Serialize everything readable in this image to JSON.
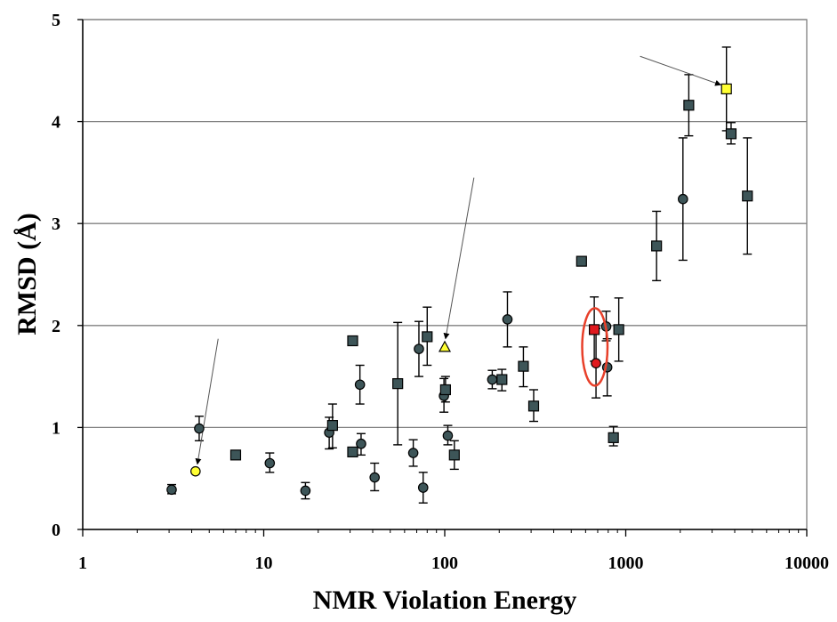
{
  "chart_data": {
    "type": "scatter",
    "title": "",
    "xlabel": "NMR Violation Energy",
    "ylabel": "RMSD (Å)",
    "x_scale": "log",
    "xlim": [
      1,
      10000
    ],
    "ylim": [
      0,
      5
    ],
    "x_ticks": [
      1,
      10,
      100,
      1000,
      10000
    ],
    "x_tick_labels": [
      "1",
      "10",
      "100",
      "1000",
      "10000"
    ],
    "y_ticks": [
      0,
      1,
      2,
      3,
      4,
      5
    ],
    "y_tick_labels": [
      "0",
      "1",
      "2",
      "3",
      "4",
      "5"
    ],
    "grid": "horizontal",
    "legend": "none",
    "colors": {
      "default": "#3d5558",
      "highlight_yellow": "#ffff33",
      "highlight_red": "#e0191e",
      "ellipse": "#e8402a",
      "gridline": "#808080",
      "errorbar": "#000000"
    },
    "points": [
      {
        "x": 3.1,
        "y": 0.39,
        "low": 0.35,
        "high": 0.44,
        "marker": "circle",
        "color": "default"
      },
      {
        "x": 4.2,
        "y": 0.57,
        "low": 0.57,
        "high": 0.57,
        "marker": "circle",
        "color": "highlight_yellow"
      },
      {
        "x": 4.4,
        "y": 0.99,
        "low": 0.87,
        "high": 1.11,
        "marker": "circle",
        "color": "default"
      },
      {
        "x": 7.0,
        "y": 0.73,
        "low": 0.73,
        "high": 0.73,
        "marker": "square",
        "color": "default"
      },
      {
        "x": 10.8,
        "y": 0.65,
        "low": 0.56,
        "high": 0.75,
        "marker": "circle",
        "color": "default"
      },
      {
        "x": 17.0,
        "y": 0.38,
        "low": 0.3,
        "high": 0.46,
        "marker": "circle",
        "color": "default"
      },
      {
        "x": 23.0,
        "y": 0.95,
        "low": 0.79,
        "high": 1.1,
        "marker": "circle",
        "color": "default"
      },
      {
        "x": 24.0,
        "y": 1.02,
        "low": 0.8,
        "high": 1.23,
        "marker": "square",
        "color": "default"
      },
      {
        "x": 31.0,
        "y": 1.85,
        "low": 1.85,
        "high": 1.85,
        "marker": "square",
        "color": "default"
      },
      {
        "x": 31.0,
        "y": 0.76,
        "low": 0.76,
        "high": 0.76,
        "marker": "square",
        "color": "default"
      },
      {
        "x": 34.0,
        "y": 1.42,
        "low": 1.23,
        "high": 1.61,
        "marker": "circle",
        "color": "default"
      },
      {
        "x": 34.5,
        "y": 0.84,
        "low": 0.73,
        "high": 0.94,
        "marker": "circle",
        "color": "default"
      },
      {
        "x": 41.0,
        "y": 0.51,
        "low": 0.38,
        "high": 0.65,
        "marker": "circle",
        "color": "default"
      },
      {
        "x": 55.0,
        "y": 1.43,
        "low": 0.83,
        "high": 2.03,
        "marker": "square",
        "color": "default"
      },
      {
        "x": 67.0,
        "y": 0.75,
        "low": 0.62,
        "high": 0.88,
        "marker": "circle",
        "color": "default"
      },
      {
        "x": 72.0,
        "y": 1.77,
        "low": 1.5,
        "high": 2.04,
        "marker": "circle",
        "color": "default"
      },
      {
        "x": 76.0,
        "y": 0.41,
        "low": 0.26,
        "high": 0.56,
        "marker": "circle",
        "color": "default"
      },
      {
        "x": 80.0,
        "y": 1.89,
        "low": 1.61,
        "high": 2.18,
        "marker": "square",
        "color": "default"
      },
      {
        "x": 99.0,
        "y": 1.31,
        "low": 1.15,
        "high": 1.48,
        "marker": "circle",
        "color": "default"
      },
      {
        "x": 100.0,
        "y": 1.79,
        "low": 1.79,
        "high": 1.79,
        "marker": "triangle",
        "color": "highlight_yellow"
      },
      {
        "x": 101.0,
        "y": 1.37,
        "low": 1.25,
        "high": 1.5,
        "marker": "square",
        "color": "default"
      },
      {
        "x": 104.0,
        "y": 0.92,
        "low": 0.83,
        "high": 1.02,
        "marker": "circle",
        "color": "default"
      },
      {
        "x": 113.0,
        "y": 0.73,
        "low": 0.59,
        "high": 0.87,
        "marker": "square",
        "color": "default"
      },
      {
        "x": 183.0,
        "y": 1.47,
        "low": 1.38,
        "high": 1.56,
        "marker": "circle",
        "color": "default"
      },
      {
        "x": 207.0,
        "y": 1.47,
        "low": 1.36,
        "high": 1.57,
        "marker": "square",
        "color": "default"
      },
      {
        "x": 222.0,
        "y": 2.06,
        "low": 1.79,
        "high": 2.33,
        "marker": "circle",
        "color": "default"
      },
      {
        "x": 272.0,
        "y": 1.6,
        "low": 1.4,
        "high": 1.79,
        "marker": "square",
        "color": "default"
      },
      {
        "x": 310.0,
        "y": 1.21,
        "low": 1.06,
        "high": 1.37,
        "marker": "square",
        "color": "default"
      },
      {
        "x": 570.0,
        "y": 2.63,
        "low": 2.63,
        "high": 2.63,
        "marker": "square",
        "color": "default"
      },
      {
        "x": 670.0,
        "y": 1.96,
        "low": 1.65,
        "high": 2.28,
        "marker": "square",
        "color": "highlight_red"
      },
      {
        "x": 685.0,
        "y": 1.63,
        "low": 1.29,
        "high": 1.97,
        "marker": "circle",
        "color": "highlight_red"
      },
      {
        "x": 780.0,
        "y": 1.99,
        "low": 1.85,
        "high": 2.14,
        "marker": "circle",
        "color": "default"
      },
      {
        "x": 790.0,
        "y": 1.59,
        "low": 1.31,
        "high": 1.87,
        "marker": "circle",
        "color": "default"
      },
      {
        "x": 855.0,
        "y": 0.9,
        "low": 0.82,
        "high": 1.01,
        "marker": "square",
        "color": "default"
      },
      {
        "x": 915.0,
        "y": 1.96,
        "low": 1.65,
        "high": 2.27,
        "marker": "square",
        "color": "default"
      },
      {
        "x": 1480.0,
        "y": 2.78,
        "low": 2.44,
        "high": 3.12,
        "marker": "square",
        "color": "default"
      },
      {
        "x": 2070.0,
        "y": 3.24,
        "low": 2.64,
        "high": 3.84,
        "marker": "circle",
        "color": "default"
      },
      {
        "x": 2230.0,
        "y": 4.16,
        "low": 3.86,
        "high": 4.46,
        "marker": "square",
        "color": "default"
      },
      {
        "x": 3600.0,
        "y": 4.32,
        "low": 3.91,
        "high": 4.73,
        "marker": "square",
        "color": "highlight_yellow"
      },
      {
        "x": 3820.0,
        "y": 3.88,
        "low": 3.78,
        "high": 3.99,
        "marker": "square",
        "color": "default"
      },
      {
        "x": 4700.0,
        "y": 3.27,
        "low": 2.7,
        "high": 3.84,
        "marker": "square",
        "color": "default"
      }
    ],
    "annotations": [
      {
        "type": "arrow",
        "from": [
          5.6,
          1.87
        ],
        "to": [
          4.3,
          0.64
        ]
      },
      {
        "type": "arrow",
        "from": [
          145,
          3.45
        ],
        "to": [
          101,
          1.87
        ]
      },
      {
        "type": "arrow",
        "from": [
          1200,
          4.64
        ],
        "to": [
          3350,
          4.36
        ]
      },
      {
        "type": "ellipse",
        "center": [
          675,
          1.79
        ],
        "rx_decades": 0.07,
        "ry": 0.38
      }
    ]
  }
}
